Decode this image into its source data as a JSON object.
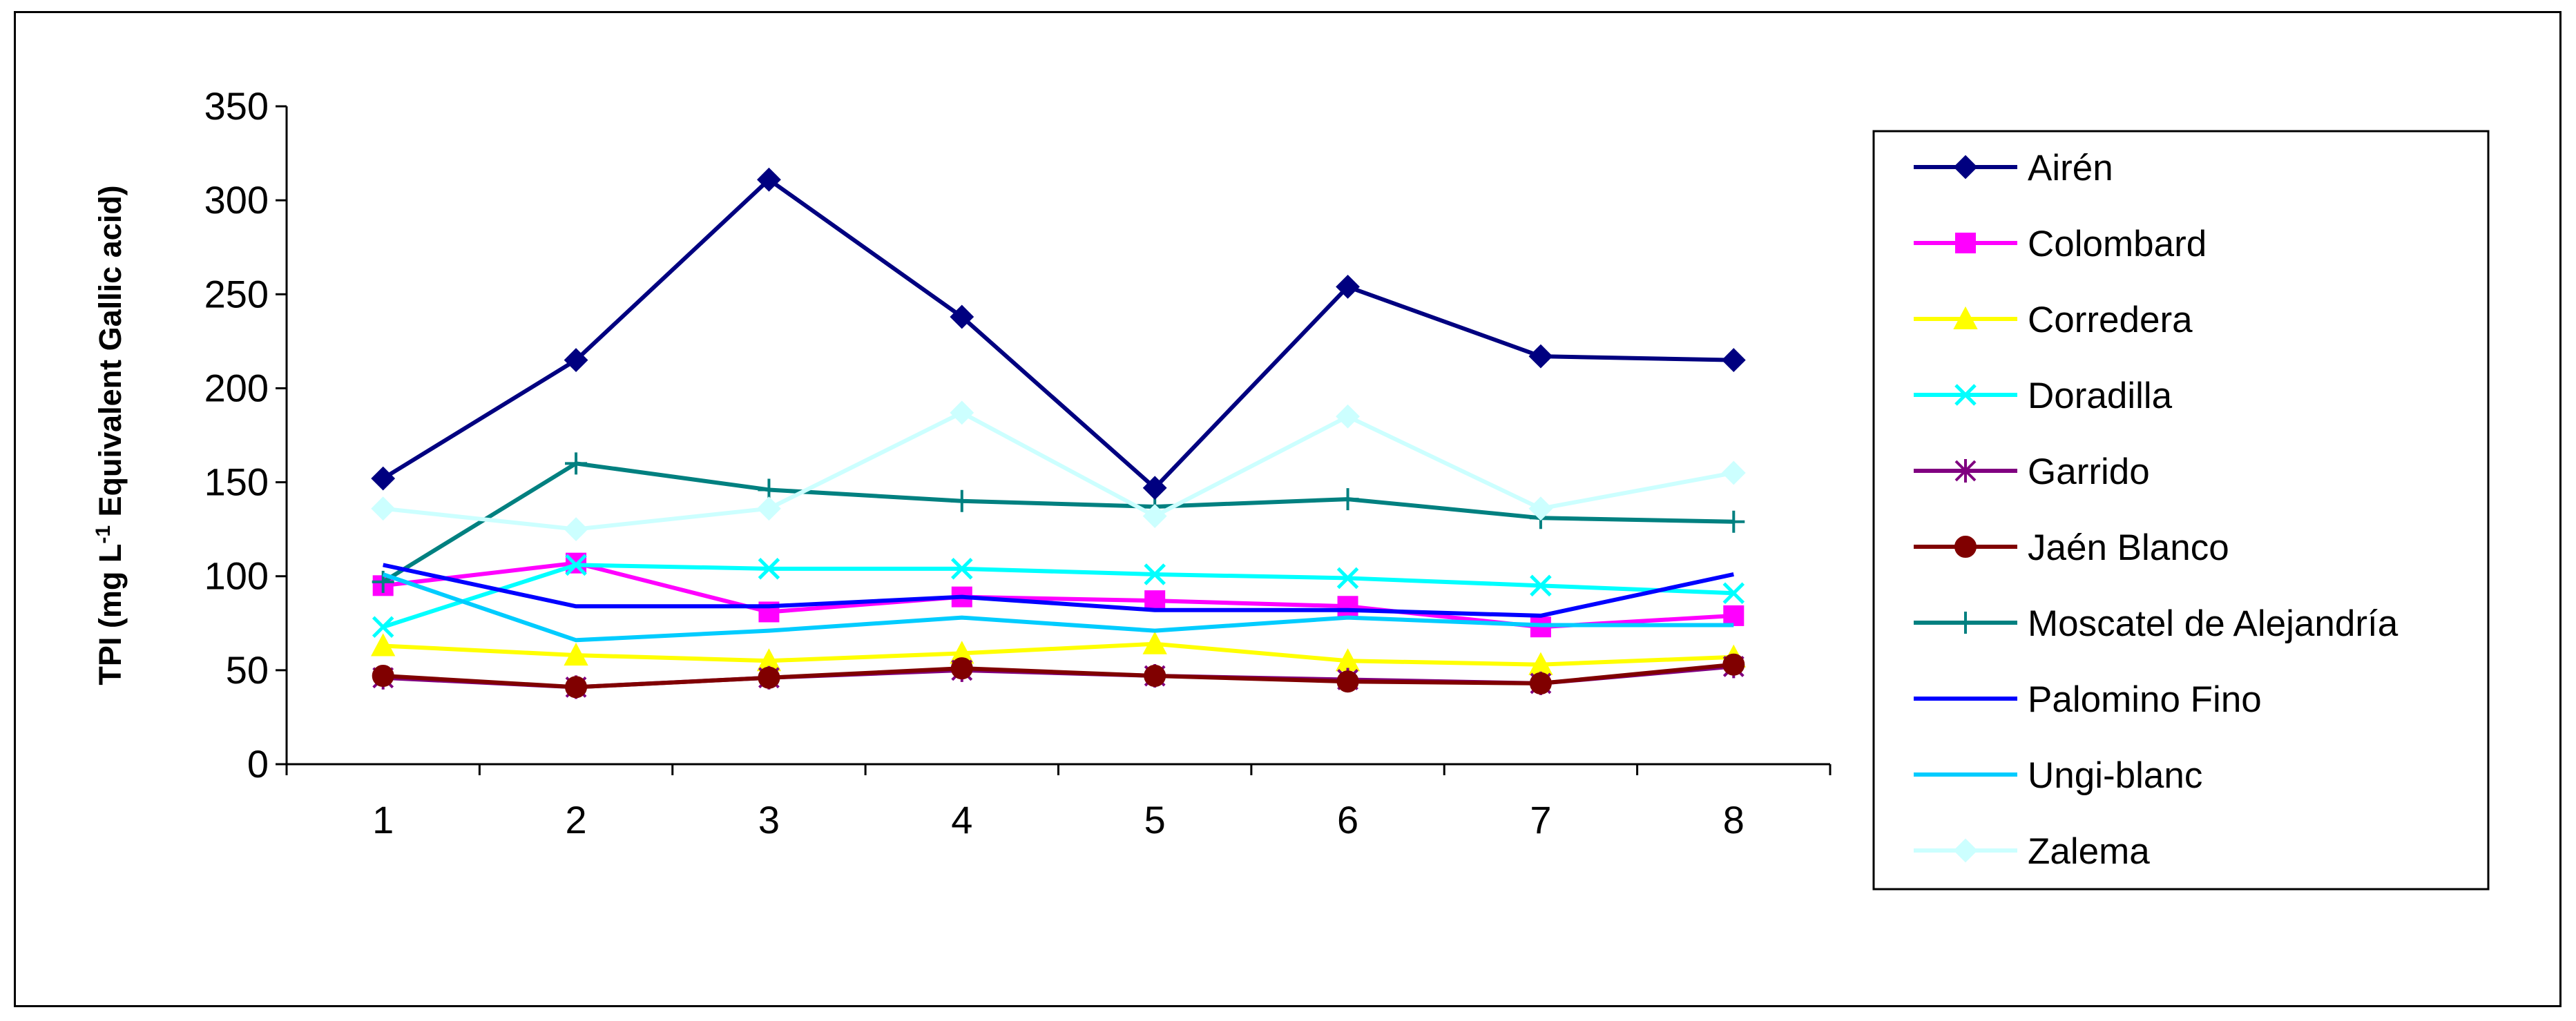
{
  "chart_data": {
    "type": "line",
    "ylabel_prefix": "TPI (mg L",
    "ylabel_sup": "-1",
    "ylabel_suffix": " Equivalent Gallic acid)",
    "xlabel": "",
    "x": [
      1,
      2,
      3,
      4,
      5,
      6,
      7,
      8
    ],
    "ylim": [
      0,
      350
    ],
    "yticks": [
      0,
      50,
      100,
      150,
      200,
      250,
      300,
      350
    ],
    "legend_position": "right",
    "series": [
      {
        "name": "Airén",
        "color": "#000080",
        "marker": "diamond",
        "values": [
          152,
          215,
          311,
          238,
          147,
          254,
          217,
          215
        ]
      },
      {
        "name": "Colombard",
        "color": "#ff00ff",
        "marker": "square",
        "values": [
          95,
          107,
          81,
          89,
          87,
          84,
          73,
          79
        ]
      },
      {
        "name": "Corredera",
        "color": "#ffff00",
        "marker": "triangle",
        "values": [
          63,
          58,
          55,
          59,
          64,
          55,
          53,
          57
        ]
      },
      {
        "name": "Doradilla",
        "color": "#00ffff",
        "marker": "x",
        "values": [
          73,
          106,
          104,
          104,
          101,
          99,
          95,
          91
        ]
      },
      {
        "name": "Garrido",
        "color": "#800080",
        "marker": "star",
        "values": [
          46,
          41,
          46,
          50,
          47,
          45,
          43,
          52
        ]
      },
      {
        "name": "Jaén Blanco",
        "color": "#800000",
        "marker": "circle",
        "values": [
          47,
          41,
          46,
          51,
          47,
          44,
          43,
          53
        ]
      },
      {
        "name": "Moscatel de Alejandría",
        "color": "#008080",
        "marker": "plus",
        "values": [
          97,
          160,
          146,
          140,
          137,
          141,
          131,
          129
        ]
      },
      {
        "name": "Palomino Fino",
        "color": "#0000ff",
        "marker": "none",
        "values": [
          106,
          84,
          84,
          89,
          82,
          82,
          79,
          101
        ]
      },
      {
        "name": "Ungi-blanc",
        "color": "#00ccff",
        "marker": "none",
        "values": [
          101,
          66,
          71,
          78,
          71,
          78,
          74,
          74
        ]
      },
      {
        "name": "Zalema",
        "color": "#ccffff",
        "marker": "diamond",
        "values": [
          136,
          125,
          136,
          187,
          132,
          185,
          136,
          155
        ]
      }
    ]
  }
}
